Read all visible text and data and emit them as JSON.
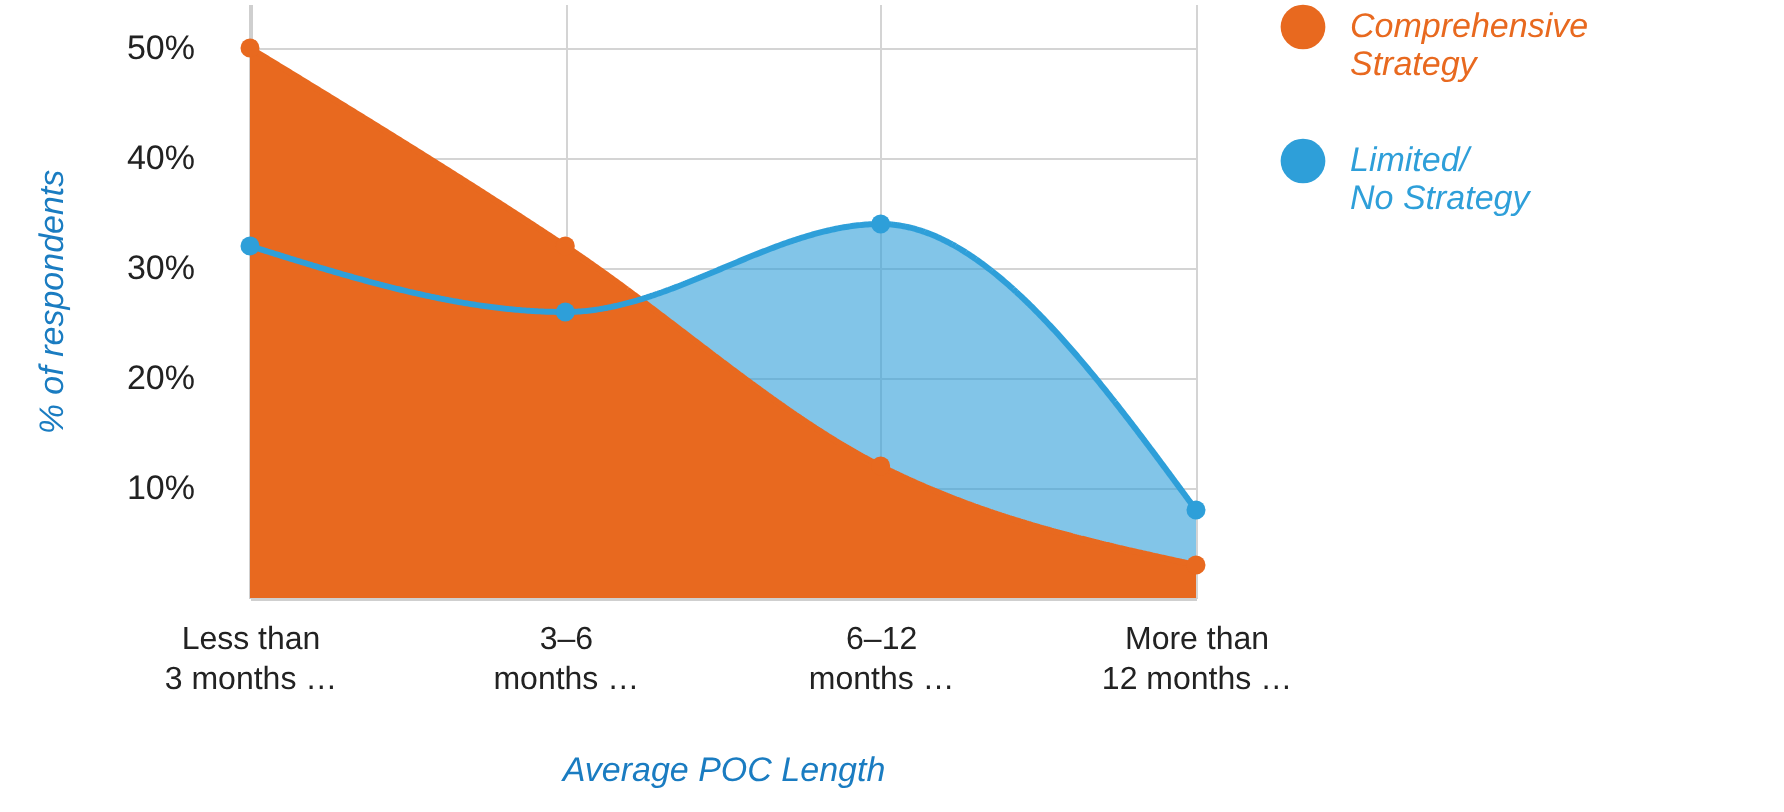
{
  "chart_data": {
    "type": "area",
    "xlabel": "Average POC Length",
    "ylabel": "% of respondents",
    "categories": [
      "Less than\n3 months …",
      "3–6\nmonths …",
      "6–12\nmonths …",
      "More than\n12 months …"
    ],
    "series": [
      {
        "name": "Comprehensive Strategy",
        "color": "#e8691f",
        "values": [
          50,
          32,
          12,
          3
        ]
      },
      {
        "name": "Limited/ No Strategy",
        "color": "#2e9fd9",
        "values": [
          32,
          26,
          34,
          8
        ]
      }
    ],
    "ylim": [
      0,
      54
    ],
    "yticks": [
      {
        "value": 10,
        "label": "10%"
      },
      {
        "value": 20,
        "label": "20%"
      },
      {
        "value": 30,
        "label": "30%"
      },
      {
        "value": 40,
        "label": "40%"
      },
      {
        "value": 50,
        "label": "50%"
      }
    ],
    "grid": true,
    "legend": "top right",
    "marker": "circle",
    "line_style": "solid"
  }
}
